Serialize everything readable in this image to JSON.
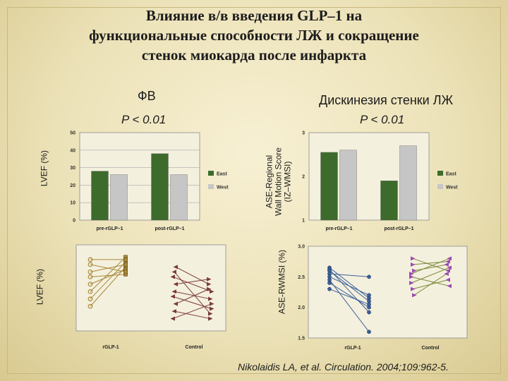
{
  "slide": {
    "title_lines": [
      "Влияние  в/в введения GLP–1 на",
      "функциональные способности ЛЖ и сокращение",
      "стенок миокарда после инфаркта"
    ],
    "left_heading": "ФВ",
    "right_heading": "Дискинезия стенки ЛЖ",
    "left_p": "P < 0.01",
    "right_p": "P < 0.01",
    "left_axis_label": "LVEF (%)",
    "left_scatter_axis_label": "LVEF (%)",
    "right_axis_label_lines": [
      "ASE-Regional",
      "Wall Motion Score",
      "(IZ–WMSI)"
    ],
    "right_scatter_axis_label": "ASE-RWMSI (%)",
    "citation": "Nikolaidis LA, et al. Circulation. 2004;109:962-5."
  },
  "colors": {
    "east": "#3c6b2c",
    "west": "#c6c6c6",
    "glp_left": "#a8893a",
    "control_left": "#7a3a3a",
    "glp_right": "#3a5f9a",
    "control_right": "#9a4bb0",
    "control_right_lines": "#7a8a3a"
  },
  "chart_data": [
    {
      "type": "bar",
      "categories": [
        "pre-rGLP–1",
        "post-rGLP–1"
      ],
      "series": [
        {
          "name": "East",
          "values": [
            28,
            38
          ]
        },
        {
          "name": "West",
          "values": [
            26,
            26
          ]
        }
      ],
      "ylim": [
        0,
        50
      ],
      "yticks": [
        0,
        10,
        20,
        30,
        40,
        50
      ],
      "ylabel": "LVEF (%)",
      "legend": "right",
      "grid": true
    },
    {
      "type": "bar",
      "categories": [
        "pre-rGLP–1",
        "post-rGLP–1"
      ],
      "series": [
        {
          "name": "East",
          "values": [
            2.55,
            1.9
          ]
        },
        {
          "name": "West",
          "values": [
            2.6,
            2.7
          ]
        }
      ],
      "ylim": [
        1,
        3
      ],
      "yticks": [
        1,
        2,
        3
      ],
      "ylabel": "ASE-Regional Wall Motion Score (IZ–WMSI)",
      "legend": "right",
      "grid": false
    },
    {
      "type": "scatter",
      "categories": [
        "rGLP-1",
        "Control"
      ],
      "ylabel": "LVEF (%)",
      "groups": [
        {
          "name": "rGLP-1",
          "pairs": [
            [
              1.5,
              3.1
            ],
            [
              1.8,
              3.3
            ],
            [
              2.1,
              3.5
            ],
            [
              2.4,
              3.0
            ],
            [
              2.7,
              2.8
            ],
            [
              2.9,
              3.2
            ],
            [
              3.2,
              2.9
            ],
            [
              3.4,
              3.4
            ]
          ]
        },
        {
          "name": "Control",
          "pairs": [
            [
              1.0,
              1.6
            ],
            [
              1.3,
              1.0
            ],
            [
              1.6,
              2.2
            ],
            [
              1.9,
              1.4
            ],
            [
              2.1,
              1.8
            ],
            [
              2.4,
              2.6
            ],
            [
              2.7,
              2.1
            ],
            [
              2.9,
              1.2
            ],
            [
              3.1,
              2.4
            ]
          ]
        }
      ]
    },
    {
      "type": "scatter",
      "categories": [
        "rGLP-1",
        "Control"
      ],
      "ylabel": "ASE-RWMSI (%)",
      "ylim": [
        1.5,
        3.0
      ],
      "yticks": [
        1.5,
        2.0,
        2.5,
        3.0
      ],
      "groups": [
        {
          "name": "rGLP-1",
          "pairs": [
            [
              2.65,
              2.15
            ],
            [
              2.62,
              1.92
            ],
            [
              2.6,
              2.1
            ],
            [
              2.55,
              2.5
            ],
            [
              2.5,
              2.2
            ],
            [
              2.45,
              1.6
            ],
            [
              2.4,
              2.0
            ],
            [
              2.3,
              2.05
            ]
          ]
        },
        {
          "name": "Control",
          "pairs": [
            [
              2.55,
              2.8
            ],
            [
              2.8,
              2.6
            ],
            [
              2.6,
              2.7
            ],
            [
              2.4,
              2.65
            ],
            [
              2.3,
              2.45
            ],
            [
              2.2,
              2.55
            ],
            [
              2.5,
              2.35
            ],
            [
              2.7,
              2.75
            ]
          ]
        }
      ]
    }
  ]
}
